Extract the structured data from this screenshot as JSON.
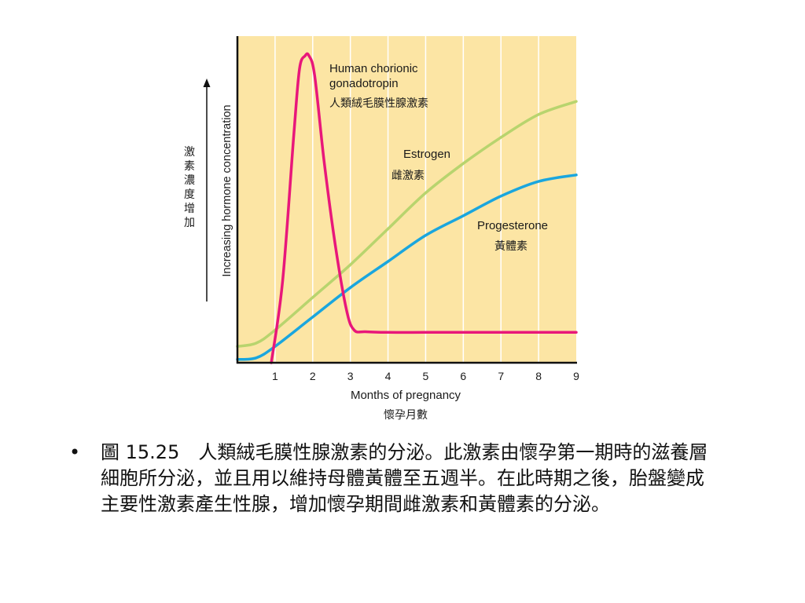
{
  "chart_data": {
    "type": "line",
    "x_ticks": [
      1,
      2,
      3,
      4,
      5,
      6,
      7,
      8,
      9
    ],
    "xlim": [
      0,
      9
    ],
    "ylim": [
      0,
      100
    ],
    "grid": "vertical",
    "xlabel": "Months of pregnancy",
    "xlabel_zh": "懷孕月數",
    "ylabel": "Increasing hormone concentration",
    "ylabel_zh": "激素濃度增加",
    "series": [
      {
        "name": "Human chorionic gonadotropin",
        "name_line1": "Human chorionic",
        "name_line2": "gonadotropin",
        "name_zh": "人類絨毛膜性腺激素",
        "color": "#e8177a",
        "x": [
          0.9,
          1.2,
          1.5,
          1.65,
          1.8,
          1.9,
          2.05,
          2.3,
          2.6,
          2.9,
          3.1,
          3.4,
          4,
          5,
          6,
          7,
          8,
          9
        ],
        "y": [
          0,
          25,
          70,
          90,
          94,
          94,
          88,
          62,
          36,
          16,
          10,
          9.5,
          9.3,
          9.3,
          9.3,
          9.3,
          9.3,
          9.3
        ]
      },
      {
        "name": "Estrogen",
        "name_zh": "雌激素",
        "color": "#b8d46e",
        "x": [
          0,
          0.5,
          1,
          2,
          3,
          4,
          5,
          6,
          7,
          8,
          9
        ],
        "y": [
          5,
          6,
          10,
          20,
          30,
          41,
          52,
          61,
          69,
          76,
          80
        ]
      },
      {
        "name": "Progesterone",
        "name_zh": "黃體素",
        "color": "#1aa6de",
        "x": [
          0,
          0.5,
          1,
          2,
          3,
          4,
          5,
          6,
          7,
          8,
          9
        ],
        "y": [
          1,
          1.5,
          5,
          14,
          23,
          31,
          39,
          45,
          51,
          55.5,
          57.5
        ]
      }
    ]
  },
  "caption": {
    "bullet": "•",
    "text": "圖 15.25　人類絨毛膜性腺激素的分泌。此激素由懷孕第一期時的滋養層細胞所分泌，並且用以維持母體黃體至五週半。在此時期之後，胎盤變成主要性激素產生性腺，增加懷孕期間雌激素和黃體素的分泌。"
  }
}
